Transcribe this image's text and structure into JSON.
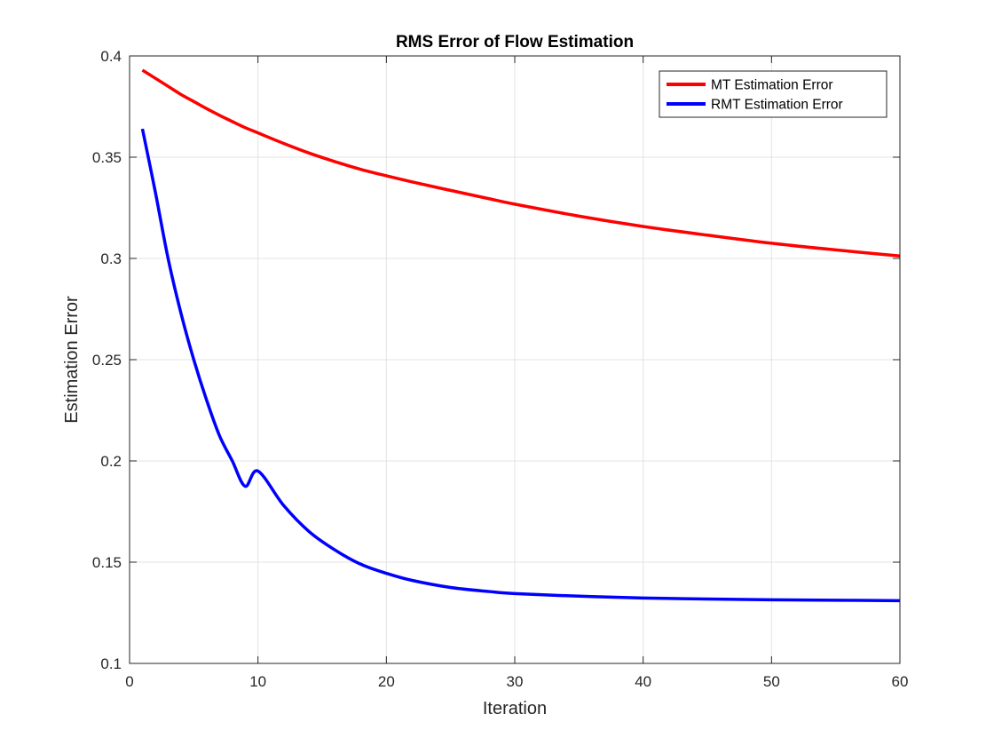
{
  "chart_data": {
    "type": "line",
    "title": "RMS Error of Flow Estimation",
    "xlabel": "Iteration",
    "ylabel": "Estimation Error",
    "xlim": [
      0,
      60
    ],
    "ylim": [
      0.1,
      0.4
    ],
    "xticks": [
      0,
      10,
      20,
      30,
      40,
      50,
      60
    ],
    "yticks": [
      0.1,
      0.15,
      0.2,
      0.25,
      0.3,
      0.35,
      0.4
    ],
    "xtick_labels": [
      "0",
      "10",
      "20",
      "30",
      "40",
      "50",
      "60"
    ],
    "ytick_labels": [
      "0.1",
      "0.15",
      "0.2",
      "0.25",
      "0.3",
      "0.35",
      "0.4"
    ],
    "grid": true,
    "legend_position": "top-right",
    "x": [
      1,
      2,
      3,
      4,
      5,
      6,
      7,
      8,
      9,
      10,
      12,
      14,
      16,
      18,
      20,
      22,
      25,
      28,
      30,
      35,
      40,
      45,
      50,
      55,
      60
    ],
    "series": [
      {
        "name": "MT Estimation Error",
        "color": "#ff0000",
        "values": [
          0.393,
          0.389,
          0.385,
          0.381,
          0.3775,
          0.374,
          0.3707,
          0.3676,
          0.3646,
          0.362,
          0.3568,
          0.352,
          0.3478,
          0.344,
          0.3408,
          0.3378,
          0.3336,
          0.3295,
          0.3268,
          0.3209,
          0.3158,
          0.3115,
          0.3075,
          0.3042,
          0.3012
        ]
      },
      {
        "name": "RMT Estimation Error",
        "color": "#0000ff",
        "values": [
          0.364,
          0.333,
          0.3,
          0.273,
          0.25,
          0.23,
          0.2125,
          0.2,
          0.1875,
          0.195,
          0.178,
          0.165,
          0.156,
          0.149,
          0.1445,
          0.141,
          0.1375,
          0.1355,
          0.1345,
          0.1332,
          0.1323,
          0.1318,
          0.1314,
          0.1312,
          0.131
        ]
      }
    ]
  }
}
